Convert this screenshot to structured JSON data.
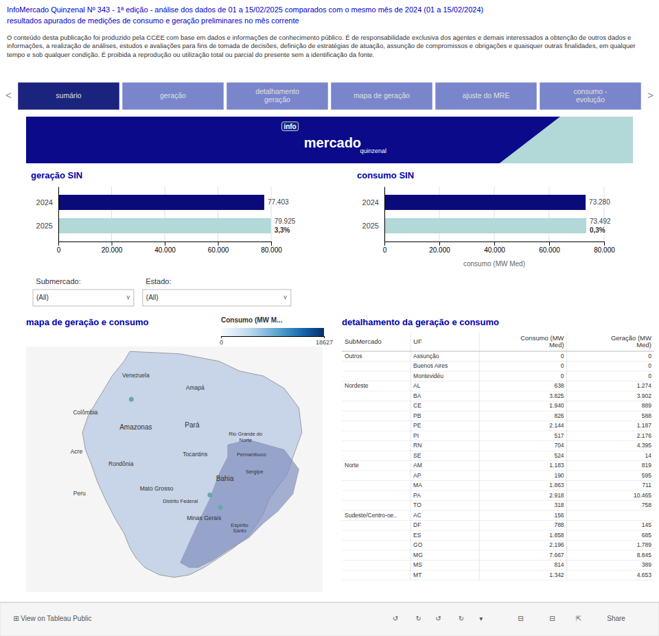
{
  "page_title": [
    "InfoMercado Quinzenal Nº 343 - 1ª edição - análise dos dados de 01 a 15/02/2025 comparados com o mesmo mês de 2024 (01 a 15/02/2024)",
    "resultados apurados de medições de consumo e geração preliminares no mês corrente"
  ],
  "disclaimer": "O conteúdo desta publicação foi produzido pela CCEE com base em dados e informações de conhecimento público. É de responsabilidade exclusiva dos agentes e demais interessados a obtenção  de outros dados e informações, a realização de análises, estudos e avaliações para fins de tomada de decisões, definição de estratégias de atuação, assunção de compromissos e obrigações e quaisquer outras finalidades, em qualquer tempo e sob qualquer condição. É proibida a reprodução ou utilização total ou parcial do presente sem a identificação da fonte.",
  "nav_tabs": [
    "sumário",
    "geração",
    "detalhamento\ngeração",
    "mapa de geração",
    "ajuste do MRE",
    "consumo -\nevolução"
  ],
  "nav_active_index": 0,
  "nav_arrows": [
    "<",
    ">"
  ],
  "banner": {
    "logo": "info",
    "name": "mercado",
    "tagline": "quinzenal"
  },
  "filters": [
    {
      "label": "Submercado:",
      "value": "(All)"
    },
    {
      "label": "Estado:",
      "value": "(All)"
    }
  ],
  "dropdown_icon": "v",
  "chart_data": [
    {
      "type": "bar",
      "orientation": "horizontal",
      "title": "geração SIN",
      "categories": [
        "2024",
        "2025"
      ],
      "values": [
        77403,
        79925
      ],
      "colors": [
        "#0a0a7a",
        "#b2d8d8"
      ],
      "data_labels": true,
      "value_labels": [
        "77.403",
        "79.925"
      ],
      "annotations": [
        {
          "category": "2025",
          "text": "3,3%"
        }
      ],
      "xlim": [
        0,
        80000
      ],
      "xticks": [
        0,
        {
          "value": 20000,
          "label": "20.000"
        },
        {
          "value": 40000,
          "label": "40.000"
        },
        {
          "value": 60000,
          "label": "60.000"
        },
        {
          "value": 80000,
          "label": "80.000"
        }
      ],
      "grid": true
    },
    {
      "type": "bar",
      "orientation": "horizontal",
      "title": "consumo SIN",
      "x_label": "consumo (MW Med)",
      "categories": [
        "2024",
        "2025"
      ],
      "values": [
        73280,
        73492
      ],
      "colors": [
        "#0a0a7a",
        "#b2d8d8"
      ],
      "data_labels": true,
      "value_labels": [
        "73.280",
        "73.492"
      ],
      "annotations": [
        {
          "category": "2025",
          "text": "0,3%"
        }
      ],
      "xlim": [
        0,
        80000
      ],
      "xticks": [
        0,
        {
          "value": 20000,
          "label": "20.000"
        },
        {
          "value": 40000,
          "label": "40.000"
        },
        {
          "value": 60000,
          "label": "60.000"
        },
        {
          "value": 80000,
          "label": "80.000"
        }
      ],
      "grid": true
    },
    {
      "type": "map",
      "title": "mapa de geração e consumo",
      "labels": [
        "Venezuela",
        "Colômbia",
        "Acre",
        "Peru",
        "Amazonas",
        "Amapá",
        "Pará",
        "Rondônia",
        "Mato Grosso",
        "Tocantins",
        "Rio Grande do\nNorte",
        "Pernambuco",
        "Bahia",
        "Sergipe",
        "Minas Gerais",
        "Distrito Federal",
        "Espírito\nSanto"
      ],
      "color_label": "Consumo (MW M...",
      "color_range": [
        0,
        18627
      ],
      "color_ticks": [
        0,
        18627
      ]
    },
    {
      "type": "table",
      "title": "detalhamento da geração e consumo",
      "columns": [
        "SubMercado",
        "UF",
        "Consumo (MW\nMed)",
        "Geração (MW\nMed)"
      ],
      "rows": [
        [
          "Outros",
          "Assunção",
          "0",
          "0"
        ],
        [
          null,
          "Buenos Aires",
          "0",
          "0"
        ],
        [
          null,
          "Montevidéu",
          "0",
          "0"
        ],
        [
          "Nordeste",
          "AL",
          "638",
          "1.274"
        ],
        [
          null,
          "BA",
          "3.825",
          "3.902"
        ],
        [
          null,
          "CE",
          "1.940",
          "889"
        ],
        [
          null,
          "PB",
          "826",
          "588"
        ],
        [
          null,
          "PE",
          "2.144",
          "1.187"
        ],
        [
          null,
          "PI",
          "517",
          "2.176"
        ],
        [
          null,
          "RN",
          "704",
          "4.395"
        ],
        [
          null,
          "SE",
          "524",
          "14"
        ],
        [
          "Norte",
          "AM",
          "1.183",
          "819"
        ],
        [
          null,
          "AP",
          "190",
          "595"
        ],
        [
          null,
          "MA",
          "1.863",
          "711"
        ],
        [
          null,
          "PA",
          "2.918",
          "10.465"
        ],
        [
          null,
          "TO",
          "318",
          "758"
        ],
        [
          "Sudeste/Centro-oe..",
          "AC",
          "156",
          null
        ],
        [
          null,
          "DF",
          "788",
          "145"
        ],
        [
          null,
          "ES",
          "1.858",
          "685"
        ],
        [
          null,
          "GO",
          "2.196",
          "1.789"
        ],
        [
          null,
          "MG",
          "7.667",
          "8.845"
        ],
        [
          null,
          "MS",
          "814",
          "389"
        ],
        [
          null,
          "MT",
          "1.342",
          "4.653"
        ]
      ]
    }
  ],
  "toolbar": {
    "link": "⊞  View on Tableau Public",
    "items": [
      "↺",
      "↻",
      "↺",
      "↻",
      "▾",
      "⊟",
      "⊟",
      "⇱",
      "Share"
    ]
  }
}
